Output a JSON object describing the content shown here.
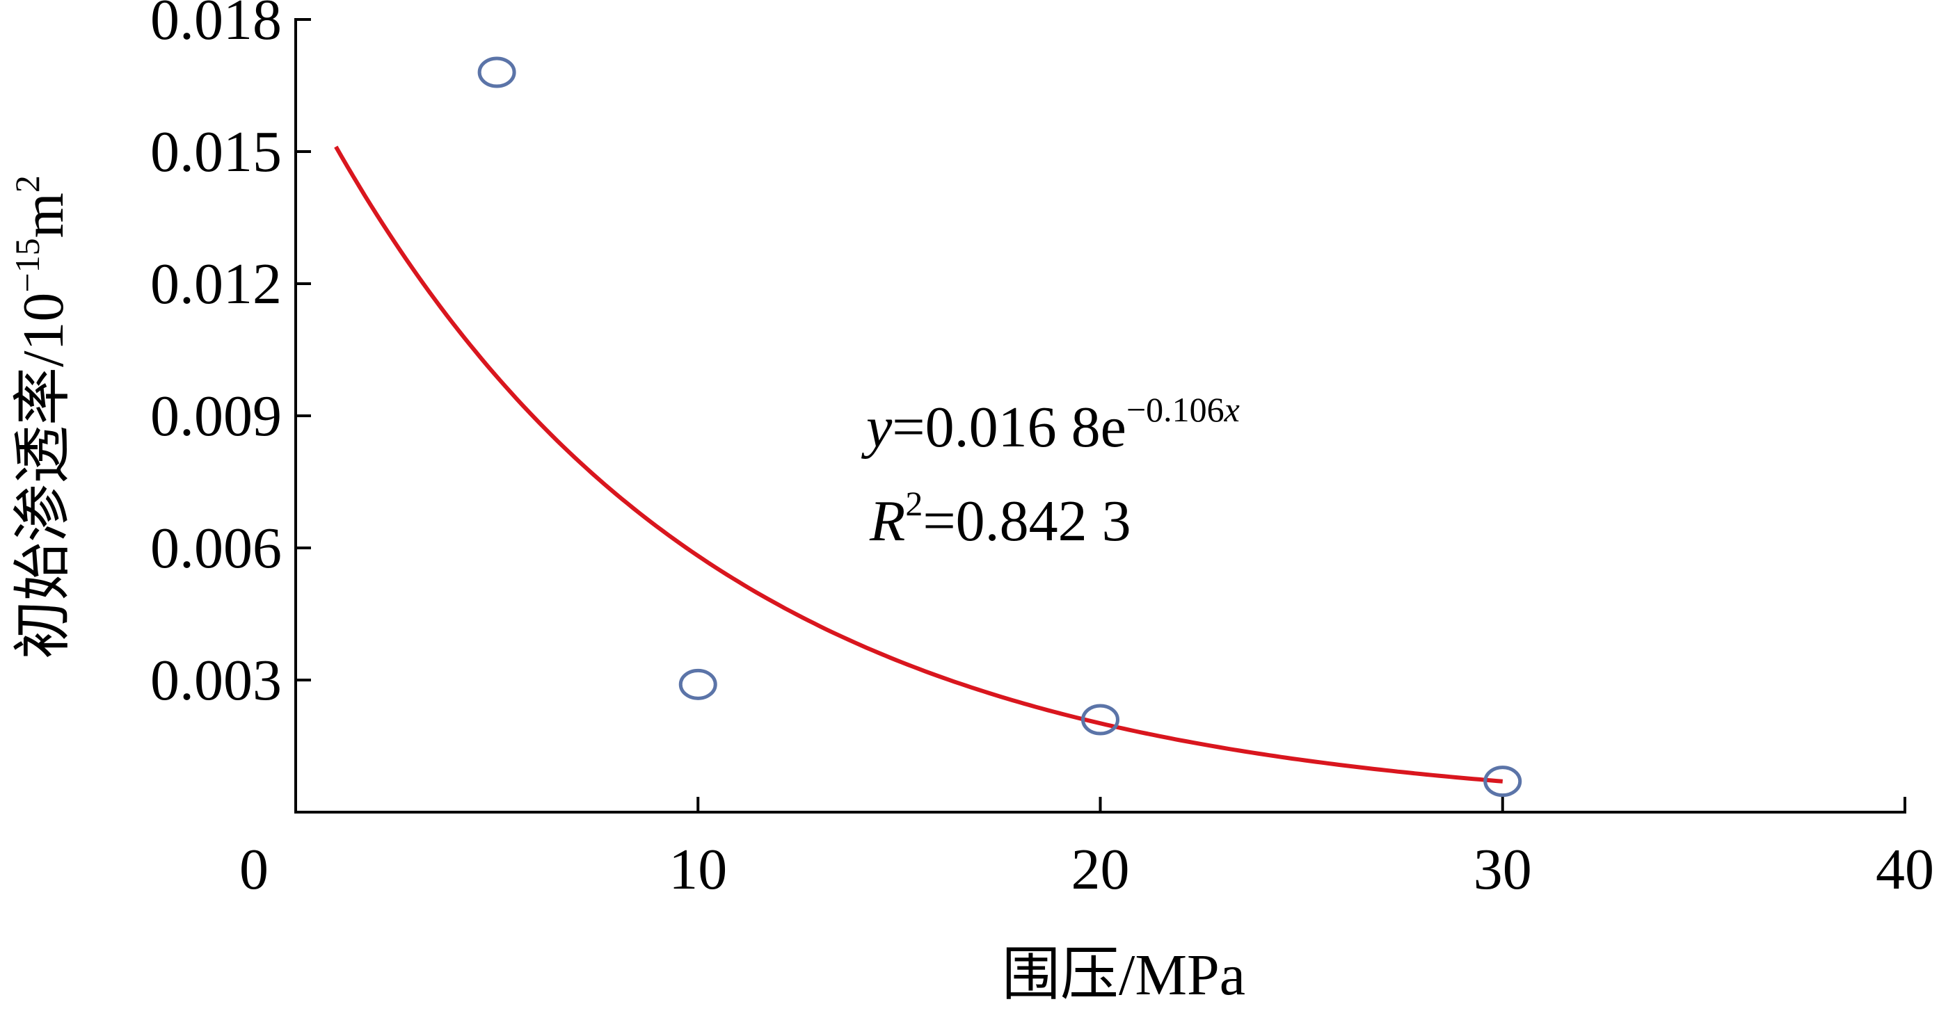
{
  "chart_data": {
    "type": "scatter",
    "title": "",
    "xlabel": "围压/MPa",
    "ylabel": {
      "base": "初始渗透率/10",
      "exponent": "−15",
      "unit": "m",
      "unit_power": "2"
    },
    "xlim": [
      0,
      40
    ],
    "ylim": [
      0,
      0.018
    ],
    "x_ticks": [
      0,
      10,
      20,
      30,
      40
    ],
    "x_tick_labels": [
      "0",
      "10",
      "20",
      "30",
      "40"
    ],
    "y_ticks": [
      0.003,
      0.006,
      0.009,
      0.012,
      0.015,
      0.018
    ],
    "y_tick_labels": [
      "0.003",
      "0.006",
      "0.009",
      "0.012",
      "0.015",
      "0.018"
    ],
    "grid": false,
    "series": [
      {
        "kind": "points",
        "marker": "hollow-circle",
        "color": "#5b74a8",
        "x": [
          5,
          10,
          20,
          30
        ],
        "y": [
          0.0168,
          0.0029,
          0.0021,
          0.0007
        ]
      },
      {
        "kind": "fit-curve",
        "color": "#d9161e",
        "model": "exponential",
        "a": 0.0168,
        "b": -0.106,
        "x_range": [
          1,
          30
        ]
      }
    ],
    "annotations": {
      "equation": {
        "y": "y",
        "eq_body": "=0.016 8e",
        "exp_num": "−0.106",
        "exp_var": "x"
      },
      "r_squared": {
        "r": "R",
        "power": "2",
        "value": "=0.842 3"
      }
    }
  }
}
